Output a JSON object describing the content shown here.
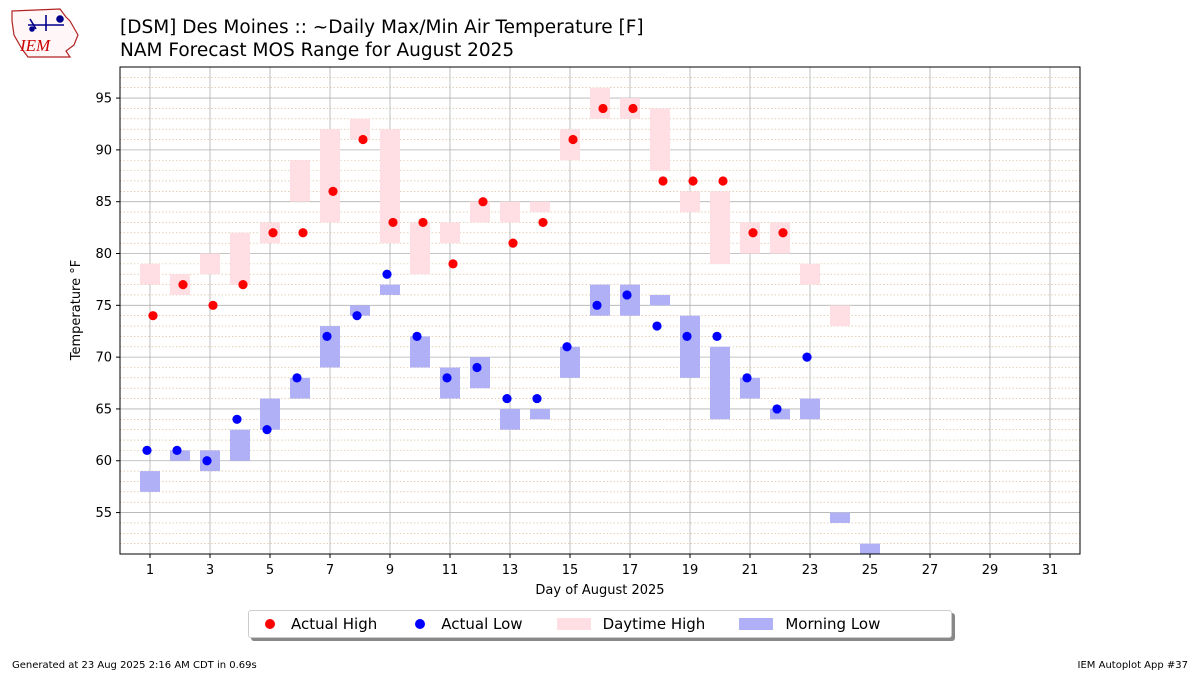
{
  "header": {
    "title_line1": "[DSM] Des Moines :: ~Daily Max/Min Air Temperature [F]",
    "title_line2": "NAM Forecast MOS Range for August 2025",
    "logo_text": "IEM"
  },
  "footer": {
    "left": "Generated at 23 Aug 2025 2:16 AM CDT in 0.69s",
    "right": "IEM Autoplot App #37"
  },
  "legend": {
    "actual_high": "Actual High",
    "actual_low": "Actual Low",
    "daytime_high": "Daytime High",
    "morning_low": "Morning Low"
  },
  "colors": {
    "actual_high": "#ff0000",
    "actual_low": "#0000ff",
    "daytime_high": "#ffdfe4",
    "morning_low": "#b0b0f6",
    "grid": "#b0b0b0",
    "minor_grid": "#d2b48c"
  },
  "chart_data": {
    "type": "bar",
    "xlabel": "Day of August 2025",
    "ylabel": "Temperature °F",
    "xlim": [
      0,
      32
    ],
    "ylim": [
      51,
      98
    ],
    "x_ticks": [
      1,
      3,
      5,
      7,
      9,
      11,
      13,
      15,
      17,
      19,
      21,
      23,
      25,
      27,
      29,
      31
    ],
    "y_ticks": [
      55,
      60,
      65,
      70,
      75,
      80,
      85,
      90,
      95
    ],
    "grid": true,
    "legend_position": "bottom-center",
    "actual_high": [
      {
        "day": 1,
        "value": 74
      },
      {
        "day": 2,
        "value": 77
      },
      {
        "day": 3,
        "value": 75
      },
      {
        "day": 4,
        "value": 77
      },
      {
        "day": 5,
        "value": 82
      },
      {
        "day": 6,
        "value": 82
      },
      {
        "day": 7,
        "value": 86
      },
      {
        "day": 8,
        "value": 91
      },
      {
        "day": 9,
        "value": 83
      },
      {
        "day": 10,
        "value": 83
      },
      {
        "day": 11,
        "value": 79
      },
      {
        "day": 12,
        "value": 85
      },
      {
        "day": 13,
        "value": 81
      },
      {
        "day": 14,
        "value": 83
      },
      {
        "day": 15,
        "value": 91
      },
      {
        "day": 16,
        "value": 94
      },
      {
        "day": 17,
        "value": 94
      },
      {
        "day": 18,
        "value": 87
      },
      {
        "day": 19,
        "value": 87
      },
      {
        "day": 20,
        "value": 87
      },
      {
        "day": 21,
        "value": 82
      },
      {
        "day": 22,
        "value": 82
      }
    ],
    "actual_low": [
      {
        "day": 1,
        "value": 61
      },
      {
        "day": 2,
        "value": 61
      },
      {
        "day": 3,
        "value": 60
      },
      {
        "day": 4,
        "value": 64
      },
      {
        "day": 5,
        "value": 63
      },
      {
        "day": 6,
        "value": 68
      },
      {
        "day": 7,
        "value": 72
      },
      {
        "day": 8,
        "value": 74
      },
      {
        "day": 9,
        "value": 78
      },
      {
        "day": 10,
        "value": 72
      },
      {
        "day": 11,
        "value": 68
      },
      {
        "day": 12,
        "value": 69
      },
      {
        "day": 13,
        "value": 66
      },
      {
        "day": 14,
        "value": 66
      },
      {
        "day": 15,
        "value": 71
      },
      {
        "day": 16,
        "value": 75
      },
      {
        "day": 17,
        "value": 76
      },
      {
        "day": 18,
        "value": 73
      },
      {
        "day": 19,
        "value": 72
      },
      {
        "day": 20,
        "value": 72
      },
      {
        "day": 21,
        "value": 68
      },
      {
        "day": 22,
        "value": 65
      },
      {
        "day": 23,
        "value": 70
      }
    ],
    "daytime_high_range": [
      {
        "day": 1,
        "min": 77,
        "max": 79
      },
      {
        "day": 2,
        "min": 76,
        "max": 78
      },
      {
        "day": 3,
        "min": 78,
        "max": 80
      },
      {
        "day": 4,
        "min": 77,
        "max": 82
      },
      {
        "day": 5,
        "min": 81,
        "max": 83
      },
      {
        "day": 6,
        "min": 85,
        "max": 89
      },
      {
        "day": 7,
        "min": 83,
        "max": 92
      },
      {
        "day": 8,
        "min": 91,
        "max": 93
      },
      {
        "day": 9,
        "min": 81,
        "max": 92
      },
      {
        "day": 10,
        "min": 78,
        "max": 83
      },
      {
        "day": 11,
        "min": 81,
        "max": 83
      },
      {
        "day": 12,
        "min": 83,
        "max": 85
      },
      {
        "day": 13,
        "min": 83,
        "max": 85
      },
      {
        "day": 14,
        "min": 84,
        "max": 85
      },
      {
        "day": 15,
        "min": 89,
        "max": 92
      },
      {
        "day": 16,
        "min": 93,
        "max": 96
      },
      {
        "day": 17,
        "min": 93,
        "max": 95
      },
      {
        "day": 18,
        "min": 88,
        "max": 94
      },
      {
        "day": 19,
        "min": 84,
        "max": 86
      },
      {
        "day": 20,
        "min": 79,
        "max": 86
      },
      {
        "day": 21,
        "min": 80,
        "max": 83
      },
      {
        "day": 22,
        "min": 80,
        "max": 83
      },
      {
        "day": 23,
        "min": 77,
        "max": 79
      },
      {
        "day": 24,
        "min": 73,
        "max": 75
      }
    ],
    "morning_low_range": [
      {
        "day": 1,
        "min": 57,
        "max": 59
      },
      {
        "day": 2,
        "min": 60,
        "max": 61
      },
      {
        "day": 3,
        "min": 59,
        "max": 61
      },
      {
        "day": 4,
        "min": 60,
        "max": 63
      },
      {
        "day": 5,
        "min": 63,
        "max": 66
      },
      {
        "day": 6,
        "min": 66,
        "max": 68
      },
      {
        "day": 7,
        "min": 69,
        "max": 73
      },
      {
        "day": 8,
        "min": 74,
        "max": 75
      },
      {
        "day": 9,
        "min": 76,
        "max": 77
      },
      {
        "day": 10,
        "min": 69,
        "max": 72
      },
      {
        "day": 11,
        "min": 66,
        "max": 69
      },
      {
        "day": 12,
        "min": 67,
        "max": 70
      },
      {
        "day": 13,
        "min": 63,
        "max": 65
      },
      {
        "day": 14,
        "min": 64,
        "max": 65
      },
      {
        "day": 15,
        "min": 68,
        "max": 71
      },
      {
        "day": 16,
        "min": 74,
        "max": 77
      },
      {
        "day": 17,
        "min": 74,
        "max": 77
      },
      {
        "day": 18,
        "min": 75,
        "max": 76
      },
      {
        "day": 19,
        "min": 68,
        "max": 74
      },
      {
        "day": 20,
        "min": 64,
        "max": 71
      },
      {
        "day": 21,
        "min": 66,
        "max": 68
      },
      {
        "day": 22,
        "min": 64,
        "max": 65
      },
      {
        "day": 23,
        "min": 64,
        "max": 66
      },
      {
        "day": 24,
        "min": 54,
        "max": 55
      },
      {
        "day": 25,
        "min": 51,
        "max": 52
      }
    ]
  }
}
